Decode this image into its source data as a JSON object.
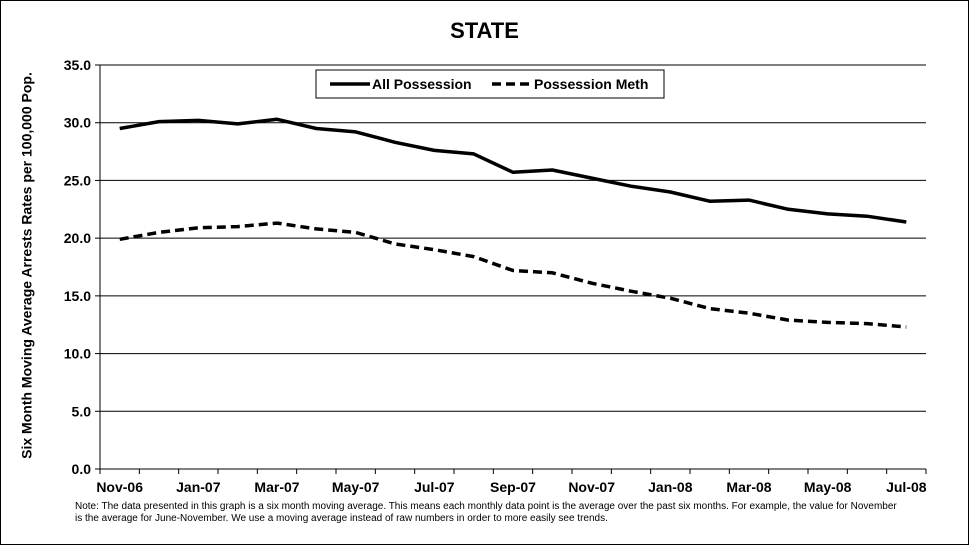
{
  "chart_data": {
    "type": "line",
    "title": "STATE",
    "xlabel": "",
    "ylabel": "Six Month Moving Average Arrests Rates per 100,000 Pop.",
    "ylim": [
      0,
      35
    ],
    "yticks": [
      "0.0",
      "5.0",
      "10.0",
      "15.0",
      "20.0",
      "25.0",
      "30.0",
      "35.0"
    ],
    "x": [
      "Nov-06",
      "Dec-06",
      "Jan-07",
      "Feb-07",
      "Mar-07",
      "Apr-07",
      "May-07",
      "Jun-07",
      "Jul-07",
      "Aug-07",
      "Sep-07",
      "Oct-07",
      "Nov-07",
      "Dec-07",
      "Jan-08",
      "Feb-08",
      "Mar-08",
      "Apr-08",
      "May-08",
      "Jun-08",
      "Jul-08"
    ],
    "xtick_labels": [
      "Nov-06",
      "",
      "Jan-07",
      "",
      "Mar-07",
      "",
      "May-07",
      "",
      "Jul-07",
      "",
      "Sep-07",
      "",
      "Nov-07",
      "",
      "Jan-08",
      "",
      "Mar-08",
      "",
      "May-08",
      "",
      "Jul-08"
    ],
    "grid": "horizontal",
    "legend_position": "top",
    "series": [
      {
        "name": "All Possession",
        "style": "solid",
        "values": [
          29.5,
          30.1,
          30.2,
          29.9,
          30.3,
          29.5,
          29.2,
          28.3,
          27.6,
          27.3,
          25.7,
          25.9,
          25.2,
          24.5,
          24.0,
          23.2,
          23.3,
          22.5,
          22.1,
          21.9,
          21.4
        ]
      },
      {
        "name": "Possession Meth",
        "style": "dashed",
        "values": [
          19.9,
          20.5,
          20.9,
          21.0,
          21.3,
          20.8,
          20.5,
          19.5,
          19.0,
          18.4,
          17.2,
          17.0,
          16.1,
          15.4,
          14.8,
          13.9,
          13.5,
          12.9,
          12.7,
          12.6,
          12.3
        ]
      }
    ],
    "note": "Note: The data presented in this graph is a six month moving average. This means each monthly data point is the average over the past six months. For example, the value for November is the average for June-November. We use a moving average instead of raw numbers in order to more easily see trends."
  },
  "colors": {
    "line": "#000000",
    "grid": "#000000",
    "background": "#ffffff"
  }
}
